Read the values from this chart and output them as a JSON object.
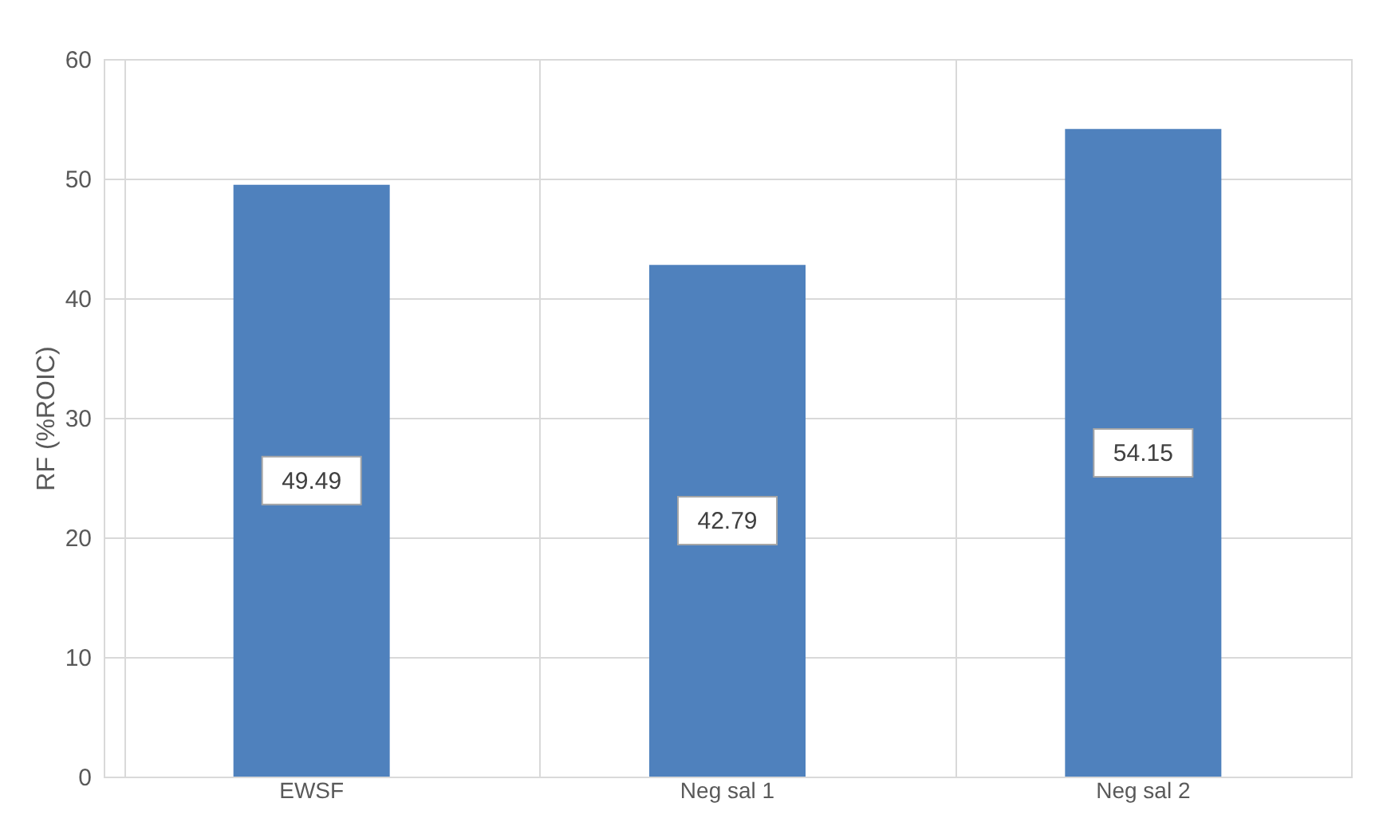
{
  "chart_data": {
    "type": "bar",
    "ylabel": "RF (%ROIC)",
    "categories": [
      "EWSF",
      "Neg sal 1",
      "Neg sal 2"
    ],
    "values": [
      49.49,
      42.79,
      54.15
    ],
    "color": "#4f81bd",
    "ylim": [
      0,
      60
    ],
    "yticks": [
      0,
      10,
      20,
      30,
      40,
      50,
      60
    ],
    "grid": true,
    "data_labels": true
  }
}
